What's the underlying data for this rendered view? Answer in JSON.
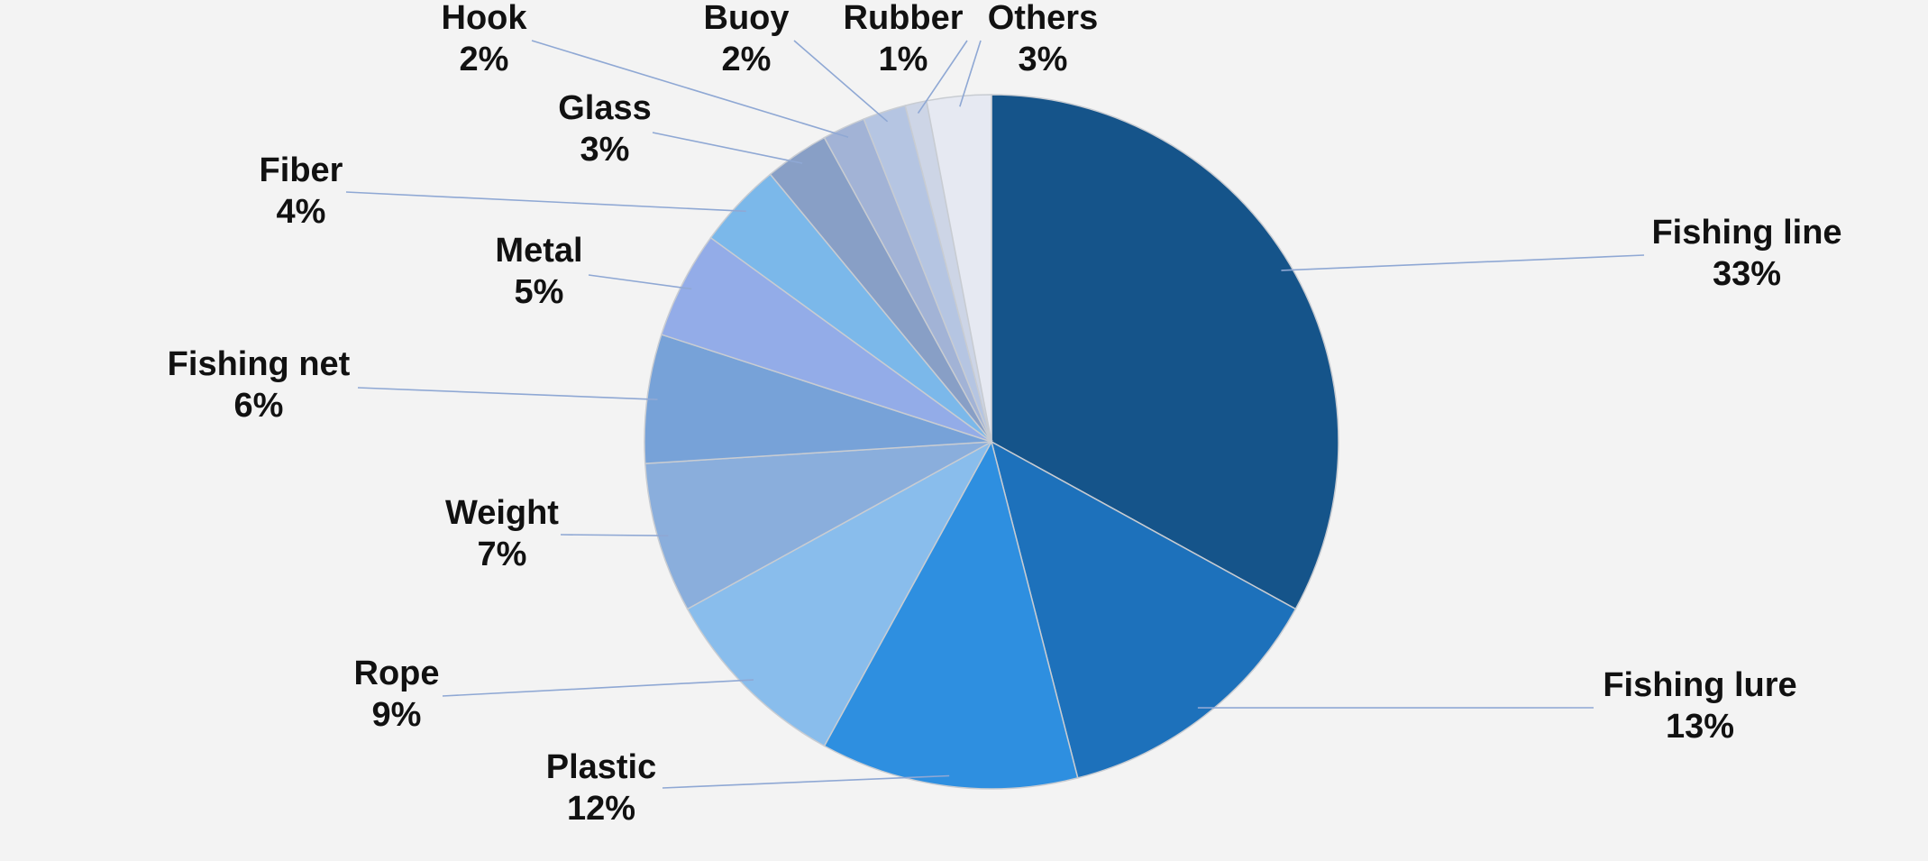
{
  "chart_data": {
    "type": "pie",
    "title": "",
    "start_angle_deg": 0,
    "direction": "clockwise",
    "slices": [
      {
        "label": "Fishing line",
        "value": 33,
        "display": "33%",
        "color": "#15548a"
      },
      {
        "label": "Fishing lure",
        "value": 13,
        "display": "13%",
        "color": "#1d71bb"
      },
      {
        "label": "Plastic",
        "value": 12,
        "display": "12%",
        "color": "#2e8fe0"
      },
      {
        "label": "Rope",
        "value": 9,
        "display": "9%",
        "color": "#89bdec"
      },
      {
        "label": "Weight",
        "value": 7,
        "display": "7%",
        "color": "#8aaedc"
      },
      {
        "label": "Fishing net",
        "value": 6,
        "display": "6%",
        "color": "#77a2d8"
      },
      {
        "label": "Metal",
        "value": 5,
        "display": "5%",
        "color": "#93ace8"
      },
      {
        "label": "Fiber",
        "value": 4,
        "display": "4%",
        "color": "#7bb8ea"
      },
      {
        "label": "Glass",
        "value": 3,
        "display": "3%",
        "color": "#889fc6"
      },
      {
        "label": "Hook",
        "value": 2,
        "display": "2%",
        "color": "#a2b3d6"
      },
      {
        "label": "Buoy",
        "value": 2,
        "display": "2%",
        "color": "#b5c5e2"
      },
      {
        "label": "Rubber",
        "value": 1,
        "display": "1%",
        "color": "#cdd5e6"
      },
      {
        "label": "Others",
        "value": 3,
        "display": "3%",
        "color": "#e6e9f2"
      }
    ]
  }
}
